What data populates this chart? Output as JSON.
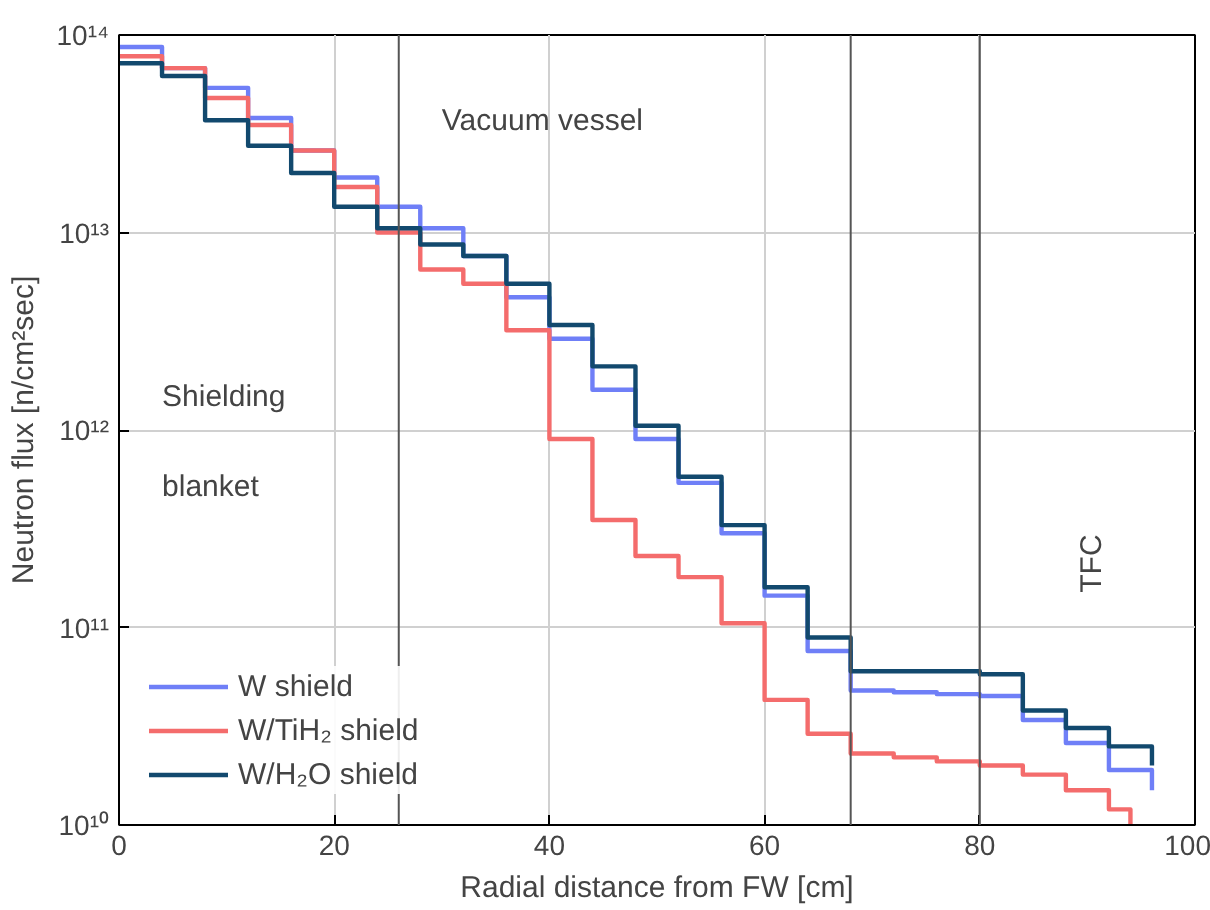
{
  "chart_data": {
    "type": "step",
    "xlabel": "Radial distance from FW [cm]",
    "ylabel": "Neutron flux [n/cm²sec]",
    "log": "y",
    "grid": true,
    "legend": "bottom left",
    "xlim": [
      0,
      100
    ],
    "xticks": [
      0,
      20,
      40,
      60,
      80,
      100
    ],
    "ylim": [
      10000000000.0,
      100000000000000.0
    ],
    "yticks": [
      {
        "value": 10000000000.0,
        "label": "10¹⁰"
      },
      {
        "value": 100000000000.0,
        "label": "10¹¹"
      },
      {
        "value": 1000000000000.0,
        "label": "10¹²"
      },
      {
        "value": 10000000000000.0,
        "label": "10¹³"
      },
      {
        "value": 100000000000000.0,
        "label": "10¹⁴"
      }
    ],
    "x": [
      0,
      4,
      8,
      12,
      16,
      20,
      24,
      28,
      32,
      36,
      40,
      44,
      48,
      52,
      56,
      60,
      64,
      68,
      72,
      76,
      80,
      84,
      88,
      92,
      96
    ],
    "series": [
      {
        "name": "W shield",
        "color": "#6f7ff7",
        "values": [
          87000000000000.0,
          68000000000000.0,
          54000000000000.0,
          38000000000000.0,
          26000000000000.0,
          19000000000000.0,
          13500000000000.0,
          10500000000000.0,
          7600000000000.0,
          4700000000000.0,
          2900000000000.0,
          1600000000000.0,
          900000000000.0,
          540000000000.0,
          300000000000.0,
          145000000000.0,
          76000000000.0,
          48000000000.0,
          47000000000.0,
          46000000000.0,
          45000000000.0,
          34000000000.0,
          26000000000.0,
          19000000000.0,
          15000000000.0
        ]
      },
      {
        "name": "W/TiH₂ shield",
        "color": "#f46c6c",
        "x": [
          0,
          4,
          8,
          12,
          16,
          20,
          24,
          28,
          32,
          36,
          40,
          44,
          48,
          52,
          56,
          60,
          64,
          68,
          72,
          76,
          80,
          84,
          88,
          92,
          94
        ],
        "values": [
          78000000000000.0,
          68000000000000.0,
          48000000000000.0,
          35000000000000.0,
          26000000000000.0,
          17000000000000.0,
          10000000000000.0,
          6500000000000.0,
          5500000000000.0,
          3200000000000.0,
          900000000000.0,
          350000000000.0,
          230000000000.0,
          180000000000.0,
          105000000000.0,
          43000000000.0,
          29000000000.0,
          23000000000.0,
          22000000000.0,
          21000000000.0,
          20000000000.0,
          18000000000.0,
          15000000000.0,
          12000000000.0,
          10000000000.0
        ]
      },
      {
        "name": "W/H₂O shield",
        "color": "#12496e",
        "values": [
          72000000000000.0,
          62000000000000.0,
          37000000000000.0,
          27500000000000.0,
          20000000000000.0,
          13500000000000.0,
          10500000000000.0,
          8700000000000.0,
          7600000000000.0,
          5500000000000.0,
          3400000000000.0,
          2100000000000.0,
          1050000000000.0,
          580000000000.0,
          330000000000.0,
          160000000000.0,
          89000000000.0,
          60000000000.0,
          60000000000.0,
          60000000000.0,
          58000000000.0,
          38000000000.0,
          31000000000.0,
          25000000000.0,
          20000000000.0
        ]
      }
    ],
    "ref_lines": [
      {
        "axis": "x",
        "value": 26,
        "color": "#555555"
      },
      {
        "axis": "x",
        "value": 68,
        "color": "#555555"
      },
      {
        "axis": "x",
        "value": 80,
        "color": "#555555"
      }
    ],
    "annotations": [
      "Vacuum vessel",
      "Shielding blanket",
      "TFC"
    ]
  }
}
